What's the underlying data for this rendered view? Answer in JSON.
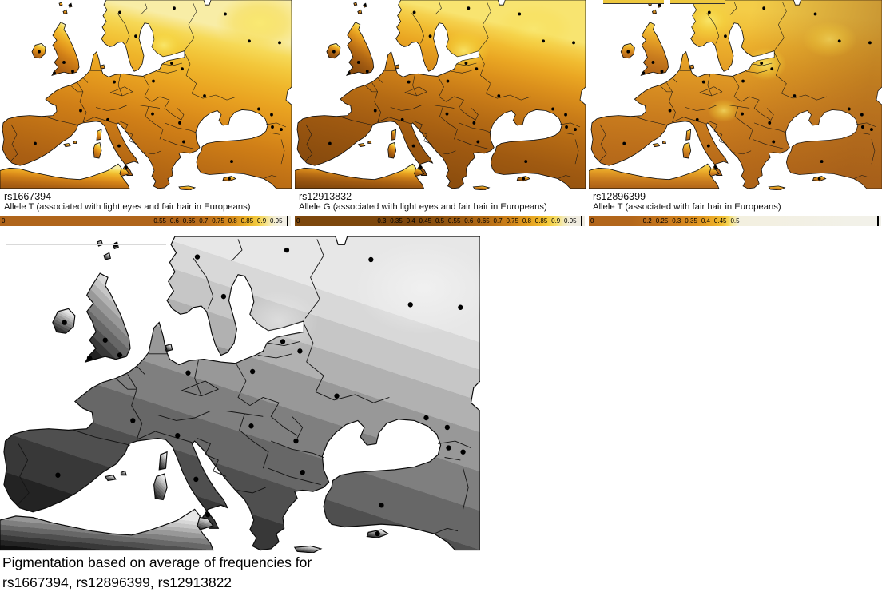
{
  "figure": {
    "panels": [
      {
        "rsid": "rs1667394",
        "allele_note": "Allele T (associated with light eyes and fair hair in Europeans)",
        "colorbar": {
          "zero_label": "0",
          "ticks": [
            {
              "label": "0.55",
              "pos": 0.55
            },
            {
              "label": "0.6",
              "pos": 0.6
            },
            {
              "label": "0.65",
              "pos": 0.65
            },
            {
              "label": "0.7",
              "pos": 0.7
            },
            {
              "label": "0.75",
              "pos": 0.75
            },
            {
              "label": "0.8",
              "pos": 0.8
            },
            {
              "label": "0.85",
              "pos": 0.85
            },
            {
              "label": "0.9",
              "pos": 0.9
            },
            {
              "label": "0.95",
              "pos": 0.95
            }
          ]
        }
      },
      {
        "rsid": "rs12913832",
        "allele_note": "Allele G (associated with light eyes and fair hair in Europeans)",
        "colorbar": {
          "zero_label": "0",
          "ticks": [
            {
              "label": "0.3",
              "pos": 0.3
            },
            {
              "label": "0.35",
              "pos": 0.35
            },
            {
              "label": "0.4",
              "pos": 0.4
            },
            {
              "label": "0.45",
              "pos": 0.45
            },
            {
              "label": "0.5",
              "pos": 0.5
            },
            {
              "label": "0.55",
              "pos": 0.55
            },
            {
              "label": "0.6",
              "pos": 0.6
            },
            {
              "label": "0.65",
              "pos": 0.65
            },
            {
              "label": "0.7",
              "pos": 0.7
            },
            {
              "label": "0.75",
              "pos": 0.75
            },
            {
              "label": "0.8",
              "pos": 0.8
            },
            {
              "label": "0.85",
              "pos": 0.85
            },
            {
              "label": "0.9",
              "pos": 0.9
            },
            {
              "label": "0.95",
              "pos": 0.95
            }
          ]
        }
      },
      {
        "rsid": "rs12896399",
        "allele_note": "Allele T (associated with fair hair in Europeans)",
        "colorbar": {
          "zero_label": "0",
          "ticks": [
            {
              "label": "0.2",
              "pos": 0.2
            },
            {
              "label": "0.25",
              "pos": 0.25
            },
            {
              "label": "0.3",
              "pos": 0.3
            },
            {
              "label": "0.35",
              "pos": 0.35
            },
            {
              "label": "0.4",
              "pos": 0.4
            },
            {
              "label": "0.45",
              "pos": 0.45
            },
            {
              "label": "0.5",
              "pos": 0.5
            }
          ]
        }
      }
    ],
    "caption": {
      "line1": "Pigmentation based on average of frequencies for",
      "line2": "rs1667394, rs12896399, rs12913822"
    }
  },
  "chart_data": [
    {
      "type": "heatmap",
      "subtype": "geographic allele-frequency surface map",
      "region": "Europe",
      "title": "rs1667394",
      "subtitle": "Allele T (associated with light eyes and fair hair in Europeans)",
      "legend_ticks": [
        0,
        0.55,
        0.6,
        0.65,
        0.7,
        0.75,
        0.8,
        0.85,
        0.9,
        0.95
      ],
      "scale_range": [
        0,
        1
      ],
      "color_low": "#9c560f",
      "color_high": "#f6efdf",
      "pattern": "low (dark orange) in southern Europe / North Africa / Anatolia, high (bright to pale yellow) in Scandinavia, Baltic and north-east Europe",
      "markers": "black dots at sampled population locations"
    },
    {
      "type": "heatmap",
      "subtype": "geographic allele-frequency surface map",
      "region": "Europe",
      "title": "rs12913832",
      "subtitle": "Allele G (associated with light eyes and fair hair in Europeans)",
      "legend_ticks": [
        0,
        0.3,
        0.35,
        0.4,
        0.45,
        0.5,
        0.55,
        0.6,
        0.65,
        0.7,
        0.75,
        0.8,
        0.85,
        0.9,
        0.95
      ],
      "scale_range": [
        0,
        1
      ],
      "color_low": "#7b430b",
      "color_high": "#f8e668",
      "pattern": "darker overall than rs1667394; brightest yellow core around the Baltic states, dark brown in Iberia and the south-east",
      "markers": "black dots at sampled population locations"
    },
    {
      "type": "heatmap",
      "subtype": "geographic allele-frequency surface map",
      "region": "Europe",
      "title": "rs12896399",
      "subtitle": "Allele T (associated with fair hair in Europeans)",
      "legend_ticks": [
        0,
        0.2,
        0.25,
        0.3,
        0.35,
        0.4,
        0.45,
        0.5
      ],
      "scale_range": [
        0,
        1
      ],
      "color_low": "#aa6017",
      "color_high": "#f6da5c",
      "pattern": "lighter, lower-contrast orange map; bright yellow patches over Scandinavia, Belarus/Baltic and central Europe; darker toward south and east",
      "markers": "black dots at sampled population locations"
    },
    {
      "type": "heatmap",
      "subtype": "grayscale pigmentation map",
      "region": "Europe",
      "title": "Pigmentation based on average of frequencies for rs1667394, rs12896399, rs12913822",
      "pattern": "stepped gray bands: near-black in Iberia, North Africa and Anatolia grading to very light gray in Scandinavia and north-east Europe",
      "markers": "black dots at sampled population locations"
    }
  ]
}
